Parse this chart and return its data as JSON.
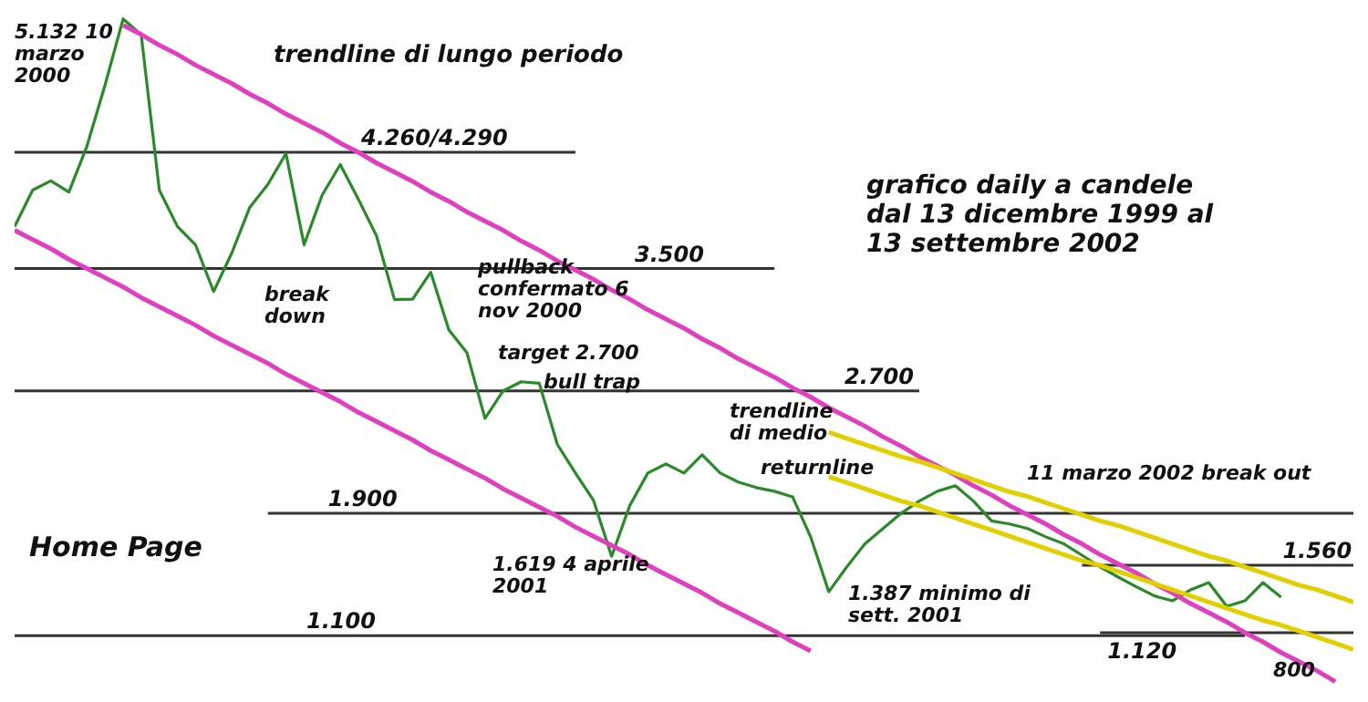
{
  "chart_data": {
    "type": "line",
    "title": "grafico daily a candele dal 13 dicembre 1999 al 13 settembre 2002",
    "ylim": [
      750,
      5160
    ],
    "categories": [
      null,
      null,
      null,
      null,
      null,
      null,
      null,
      null,
      null,
      null,
      null,
      null,
      null,
      null,
      null,
      null,
      null,
      null,
      null,
      null,
      null,
      null,
      null,
      null,
      null,
      null,
      null,
      null,
      null,
      null,
      null,
      null,
      null,
      null,
      null,
      null,
      null,
      null,
      null,
      null,
      null,
      null,
      null,
      null,
      null,
      null,
      null,
      null,
      null,
      null,
      null,
      null,
      null,
      null,
      null,
      null,
      null,
      null,
      null,
      null,
      null,
      null,
      null,
      null,
      null,
      null,
      null,
      null,
      null,
      null,
      null,
      null,
      null,
      null,
      null
    ],
    "series": [
      {
        "color": "#2a8a2a",
        "values": [
          3774,
          4013,
          4073,
          4000,
          4300,
          4700,
          5132,
          5027,
          4013,
          3775,
          3655,
          3350,
          3600,
          3900,
          4050,
          4252,
          3655,
          3980,
          4180,
          3953,
          3715,
          3297,
          3300,
          3476,
          3100,
          2950,
          2521,
          2700,
          2760,
          2750,
          2350,
          2163,
          1984,
          1619,
          1950,
          2163,
          2223,
          2163,
          2283,
          2163,
          2104,
          2068,
          2044,
          2008,
          1746,
          1387,
          1550,
          1700,
          1800,
          1900,
          1980,
          2044,
          2080,
          1980,
          1850,
          1830,
          1800,
          1746,
          1700,
          1626,
          1550,
          1483,
          1420,
          1360,
          1328,
          1400,
          1447,
          1292,
          1328,
          1447,
          1352,
          null,
          null,
          null,
          null
        ]
      },
      {
        "type": "line",
        "color": "#e040c0",
        "values": [
          null,
          null,
          null,
          null,
          null,
          null,
          5090,
          5030,
          4960,
          4900,
          4830,
          4770,
          4710,
          4640,
          4580,
          4510,
          4450,
          4390,
          4320,
          4260,
          4190,
          4130,
          4070,
          4000,
          3940,
          3870,
          3810,
          3750,
          3680,
          3620,
          3550,
          3490,
          3430,
          3360,
          3300,
          3230,
          3170,
          3110,
          3040,
          2980,
          2910,
          2850,
          2790,
          2720,
          2660,
          2590,
          2530,
          2470,
          2400,
          2340,
          2270,
          2210,
          2150,
          2080,
          2020,
          1950,
          1890,
          1830,
          1760,
          1700,
          1630,
          1570,
          1510,
          1440,
          1380,
          1310,
          1250,
          1190,
          1120,
          1060,
          990,
          930,
          870,
          800,
          null
        ]
      },
      {
        "type": "line",
        "color": "#e040c0",
        "values": [
          3750,
          3690,
          3630,
          3560,
          3500,
          3440,
          3380,
          3310,
          3250,
          3190,
          3130,
          3060,
          3000,
          2940,
          2880,
          2810,
          2750,
          2690,
          2630,
          2560,
          2500,
          2440,
          2380,
          2310,
          2250,
          2190,
          2130,
          2060,
          2000,
          1940,
          1880,
          1810,
          1750,
          1690,
          1630,
          1560,
          1500,
          1440,
          1380,
          1310,
          1250,
          1190,
          1130,
          1060,
          1000,
          null,
          null,
          null,
          null,
          null,
          null,
          null,
          null,
          null,
          null,
          null,
          null,
          null,
          null,
          null,
          null,
          null,
          null,
          null,
          null,
          null,
          null,
          null,
          null,
          null,
          null,
          null,
          null,
          null,
          null
        ]
      },
      {
        "type": "line",
        "color": "#e0d000",
        "values": [
          null,
          null,
          null,
          null,
          null,
          null,
          null,
          null,
          null,
          null,
          null,
          null,
          null,
          null,
          null,
          null,
          null,
          null,
          null,
          null,
          null,
          null,
          null,
          null,
          null,
          null,
          null,
          null,
          null,
          null,
          null,
          null,
          null,
          null,
          null,
          null,
          null,
          null,
          null,
          null,
          null,
          null,
          null,
          null,
          null,
          2430,
          2390,
          2350,
          2310,
          2270,
          2240,
          2200,
          2160,
          2120,
          2080,
          2040,
          2010,
          1970,
          1930,
          1890,
          1850,
          1820,
          1780,
          1740,
          1700,
          1660,
          1620,
          1590,
          1550,
          1510,
          1470,
          1430,
          1400,
          1360,
          1320
        ]
      },
      {
        "type": "line",
        "color": "#e0d000",
        "values": [
          null,
          null,
          null,
          null,
          null,
          null,
          null,
          null,
          null,
          null,
          null,
          null,
          null,
          null,
          null,
          null,
          null,
          null,
          null,
          null,
          null,
          null,
          null,
          null,
          null,
          null,
          null,
          null,
          null,
          null,
          null,
          null,
          null,
          null,
          null,
          null,
          null,
          null,
          null,
          null,
          null,
          null,
          null,
          null,
          null,
          2140,
          2100,
          2060,
          2020,
          1980,
          1950,
          1910,
          1870,
          1830,
          1790,
          1750,
          1710,
          1670,
          1630,
          1590,
          1560,
          1520,
          1480,
          1440,
          1400,
          1360,
          1320,
          1280,
          1240,
          1200,
          1170,
          1130,
          1090,
          1050,
          1010
        ]
      }
    ],
    "ref_lines": [
      {
        "axis": "y",
        "value": 4260,
        "label": "4.260/4.290",
        "color": "#333333"
      },
      {
        "axis": "y",
        "value": 3500,
        "label": "3.500",
        "color": "#333333"
      },
      {
        "axis": "y",
        "value": 2700,
        "label": "2.700",
        "color": "#333333"
      },
      {
        "axis": "y",
        "value": 1900,
        "label": "1.900",
        "color": "#333333"
      },
      {
        "axis": "y",
        "value": 1100,
        "label": "1.100",
        "color": "#333333"
      },
      {
        "axis": "y",
        "value": 1560,
        "label": "1.560",
        "color": "#333333"
      },
      {
        "axis": "y",
        "value": 1120,
        "label": "1.120",
        "color": "#333333"
      }
    ],
    "annotations": [
      "5.132 10 marzo 2000",
      "1.619 4 aprile 2001",
      "1.387 minimo di sett. 2001",
      "target 2.700",
      "800",
      "trendline di lungo periodo",
      "break down",
      "pullback confermato 6 nov 2000",
      "bull trap",
      "trendline di medio",
      "returnline",
      "11 marzo 2002 break out",
      "Home Page"
    ]
  }
}
